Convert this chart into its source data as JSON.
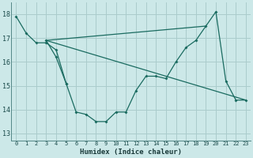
{
  "xlabel": "Humidex (Indice chaleur)",
  "background_color": "#cce8e8",
  "grid_color": "#aacccc",
  "line_color": "#1a6b60",
  "xlim": [
    -0.5,
    23.5
  ],
  "ylim": [
    12.7,
    18.5
  ],
  "yticks": [
    13,
    14,
    15,
    16,
    17,
    18
  ],
  "xticks": [
    0,
    1,
    2,
    3,
    4,
    5,
    6,
    7,
    8,
    9,
    10,
    11,
    12,
    13,
    14,
    15,
    16,
    17,
    18,
    19,
    20,
    21,
    22,
    23
  ],
  "series1_y": [
    17.9,
    17.2,
    16.8,
    16.8,
    16.5,
    15.1,
    null,
    null,
    null,
    null,
    null,
    null,
    null,
    null,
    null,
    null,
    null,
    null,
    null,
    null,
    null,
    null,
    null,
    null
  ],
  "series2_y": [
    null,
    null,
    null,
    16.9,
    16.2,
    15.1,
    13.9,
    13.8,
    13.5,
    13.5,
    13.9,
    13.9,
    14.8,
    15.4,
    15.4,
    15.3,
    16.0,
    16.6,
    16.9,
    17.5,
    18.1,
    15.2,
    14.4,
    14.4
  ],
  "series3_x": [
    3,
    23
  ],
  "series3_y": [
    16.9,
    14.4
  ],
  "series4_x": [
    3,
    19
  ],
  "series4_y": [
    16.9,
    17.5
  ]
}
